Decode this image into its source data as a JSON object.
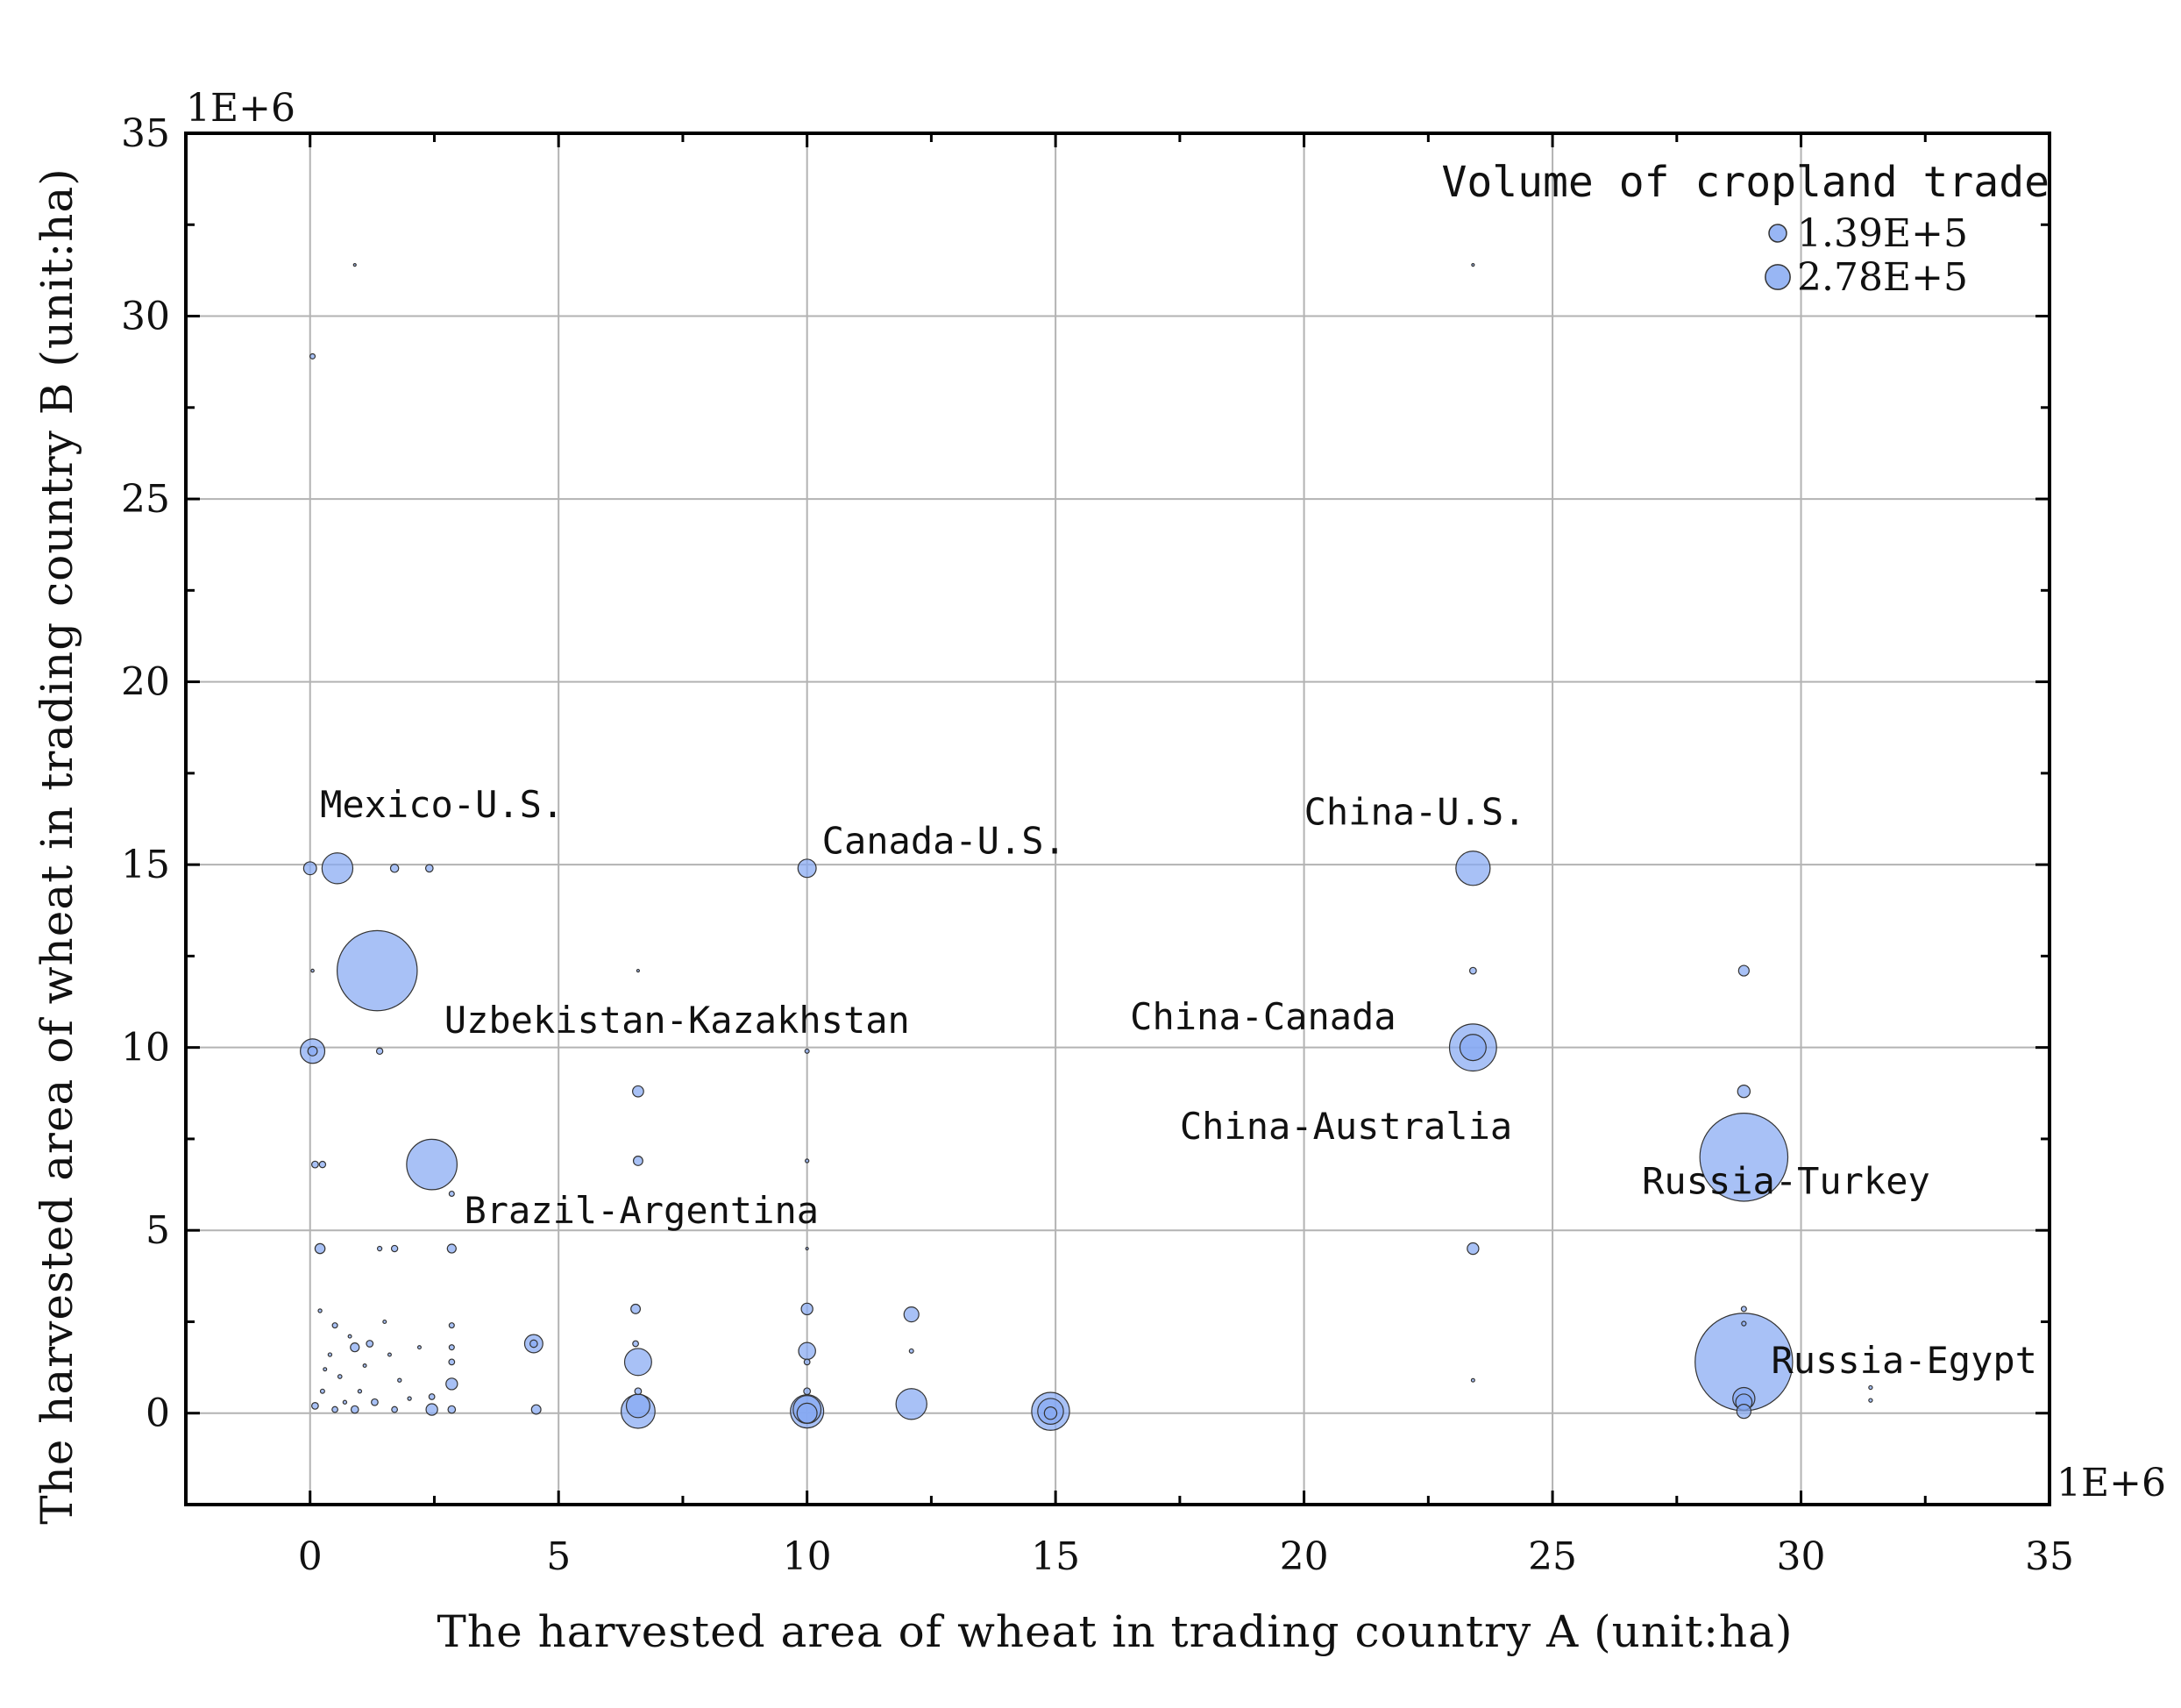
{
  "chart_data": {
    "type": "scatter",
    "title": "",
    "xlabel": "The harvested area of wheat in trading country A (unit:ha)",
    "ylabel": "The harvested area of wheat in trading country B (unit:ha)",
    "x_multiplier": "1E+6",
    "y_multiplier": "1E+6",
    "xlim": [
      -2.5,
      35
    ],
    "ylim": [
      -2.5,
      35
    ],
    "xticks": [
      0,
      5,
      10,
      15,
      20,
      25,
      30,
      35
    ],
    "yticks": [
      0,
      5,
      10,
      15,
      20,
      25,
      30,
      35
    ],
    "grid": true,
    "bubble_color": "#86a9f2",
    "bubble_stroke": "#333333",
    "legend": {
      "title": "Volume of cropland trade",
      "placement": "top-right",
      "entries": [
        {
          "label": "1.39E+5",
          "size": 139000
        },
        {
          "label": "2.78E+5",
          "size": 278000
        }
      ]
    },
    "annotations": [
      {
        "text": "Mexico-U.S.",
        "x": 0.2,
        "y": 16.3
      },
      {
        "text": "Canada-U.S.",
        "x": 10.3,
        "y": 15.3
      },
      {
        "text": "China-U.S.",
        "x": 20.0,
        "y": 16.1
      },
      {
        "text": "Uzbekistan-Kazakhstan",
        "x": 2.7,
        "y": 10.4
      },
      {
        "text": "China-Canada",
        "x": 16.5,
        "y": 10.5
      },
      {
        "text": "China-Australia",
        "x": 17.5,
        "y": 7.5
      },
      {
        "text": "Brazil-Argentina",
        "x": 3.1,
        "y": 5.2
      },
      {
        "text": "Russia-Turkey",
        "x": 26.8,
        "y": 6.0
      },
      {
        "text": "Russia-Egypt",
        "x": 29.4,
        "y": 1.1
      }
    ],
    "points": [
      {
        "x": 1.35,
        "y": 12.1,
        "size": 2900000
      },
      {
        "x": 28.85,
        "y": 7.0,
        "size": 3500000
      },
      {
        "x": 28.85,
        "y": 1.4,
        "size": 4300000
      },
      {
        "x": 2.45,
        "y": 6.8,
        "size": 1150000
      },
      {
        "x": 0.55,
        "y": 14.9,
        "size": 430000
      },
      {
        "x": 23.4,
        "y": 14.9,
        "size": 530000
      },
      {
        "x": 23.4,
        "y": 10.0,
        "size": 1000000
      },
      {
        "x": 23.4,
        "y": 10.0,
        "size": 310000
      },
      {
        "x": 10.0,
        "y": 14.9,
        "size": 150000
      },
      {
        "x": 0.05,
        "y": 9.9,
        "size": 270000
      },
      {
        "x": 0.05,
        "y": 9.9,
        "size": 40000
      },
      {
        "x": 0.0,
        "y": 14.9,
        "size": 75000
      },
      {
        "x": 0.05,
        "y": 28.9,
        "size": 12000
      },
      {
        "x": 1.7,
        "y": 14.9,
        "size": 30000
      },
      {
        "x": 2.4,
        "y": 14.9,
        "size": 25000
      },
      {
        "x": 1.4,
        "y": 9.9,
        "size": 18000
      },
      {
        "x": 0.1,
        "y": 6.8,
        "size": 20000
      },
      {
        "x": 0.25,
        "y": 6.8,
        "size": 18000
      },
      {
        "x": 2.85,
        "y": 6.0,
        "size": 12000
      },
      {
        "x": 0.2,
        "y": 4.5,
        "size": 45000
      },
      {
        "x": 1.7,
        "y": 4.5,
        "size": 18000
      },
      {
        "x": 2.85,
        "y": 4.5,
        "size": 35000
      },
      {
        "x": 1.4,
        "y": 4.5,
        "size": 9000
      },
      {
        "x": 6.6,
        "y": 8.8,
        "size": 55000
      },
      {
        "x": 6.6,
        "y": 6.9,
        "size": 40000
      },
      {
        "x": 10.0,
        "y": 9.9,
        "size": 8000
      },
      {
        "x": 10.0,
        "y": 6.9,
        "size": 6000
      },
      {
        "x": 23.4,
        "y": 12.1,
        "size": 20000
      },
      {
        "x": 23.4,
        "y": 4.5,
        "size": 60000
      },
      {
        "x": 28.85,
        "y": 12.1,
        "size": 50000
      },
      {
        "x": 28.85,
        "y": 8.8,
        "size": 70000
      },
      {
        "x": 28.85,
        "y": 2.85,
        "size": 12000
      },
      {
        "x": 28.85,
        "y": 2.45,
        "size": 9000
      },
      {
        "x": 28.85,
        "y": 0.4,
        "size": 220000
      },
      {
        "x": 28.85,
        "y": 0.3,
        "size": 120000
      },
      {
        "x": 28.85,
        "y": 0.05,
        "size": 90000
      },
      {
        "x": 31.4,
        "y": 0.7,
        "size": 6000
      },
      {
        "x": 31.4,
        "y": 0.35,
        "size": 6000
      },
      {
        "x": 23.4,
        "y": 0.9,
        "size": 5000
      },
      {
        "x": 4.5,
        "y": 1.9,
        "size": 150000
      },
      {
        "x": 4.5,
        "y": 1.9,
        "size": 25000
      },
      {
        "x": 6.6,
        "y": 1.4,
        "size": 330000
      },
      {
        "x": 6.6,
        "y": 0.05,
        "size": 520000
      },
      {
        "x": 6.6,
        "y": 0.2,
        "size": 250000
      },
      {
        "x": 6.55,
        "y": 2.85,
        "size": 40000
      },
      {
        "x": 6.55,
        "y": 1.9,
        "size": 15000
      },
      {
        "x": 10.0,
        "y": 2.85,
        "size": 60000
      },
      {
        "x": 10.0,
        "y": 1.7,
        "size": 130000
      },
      {
        "x": 10.0,
        "y": 1.4,
        "size": 15000
      },
      {
        "x": 10.0,
        "y": 0.05,
        "size": 500000
      },
      {
        "x": 10.0,
        "y": 0.1,
        "size": 350000
      },
      {
        "x": 10.0,
        "y": 0.0,
        "size": 180000
      },
      {
        "x": 12.1,
        "y": 2.7,
        "size": 100000
      },
      {
        "x": 12.1,
        "y": 1.7,
        "size": 8000
      },
      {
        "x": 12.1,
        "y": 0.25,
        "size": 430000
      },
      {
        "x": 14.9,
        "y": 0.05,
        "size": 650000
      },
      {
        "x": 14.9,
        "y": 0.05,
        "size": 300000
      },
      {
        "x": 14.9,
        "y": 0.0,
        "size": 70000
      },
      {
        "x": 2.45,
        "y": 0.1,
        "size": 60000
      },
      {
        "x": 2.45,
        "y": 0.45,
        "size": 15000
      },
      {
        "x": 2.85,
        "y": 0.8,
        "size": 60000
      },
      {
        "x": 2.85,
        "y": 1.4,
        "size": 15000
      },
      {
        "x": 2.85,
        "y": 1.8,
        "size": 12000
      },
      {
        "x": 2.85,
        "y": 2.4,
        "size": 12000
      },
      {
        "x": 2.85,
        "y": 0.1,
        "size": 25000
      },
      {
        "x": 4.55,
        "y": 0.1,
        "size": 40000
      },
      {
        "x": 0.9,
        "y": 1.8,
        "size": 35000
      },
      {
        "x": 1.2,
        "y": 1.9,
        "size": 20000
      },
      {
        "x": 0.5,
        "y": 2.4,
        "size": 12000
      },
      {
        "x": 0.9,
        "y": 0.1,
        "size": 25000
      },
      {
        "x": 1.3,
        "y": 0.3,
        "size": 20000
      },
      {
        "x": 0.5,
        "y": 0.1,
        "size": 15000
      },
      {
        "x": 0.1,
        "y": 0.2,
        "size": 20000
      },
      {
        "x": 1.7,
        "y": 0.1,
        "size": 15000
      },
      {
        "x": 0.25,
        "y": 0.6,
        "size": 8000
      },
      {
        "x": 0.6,
        "y": 1.0,
        "size": 7000
      },
      {
        "x": 1.0,
        "y": 0.6,
        "size": 6000
      },
      {
        "x": 0.4,
        "y": 1.6,
        "size": 6000
      },
      {
        "x": 1.8,
        "y": 0.9,
        "size": 6000
      },
      {
        "x": 2.2,
        "y": 1.8,
        "size": 5000
      },
      {
        "x": 0.2,
        "y": 2.8,
        "size": 6000
      },
      {
        "x": 1.5,
        "y": 2.5,
        "size": 5000
      },
      {
        "x": 0.7,
        "y": 0.3,
        "size": 6000
      },
      {
        "x": 2.0,
        "y": 0.4,
        "size": 6000
      },
      {
        "x": 1.1,
        "y": 1.3,
        "size": 5000
      },
      {
        "x": 0.3,
        "y": 1.2,
        "size": 5000
      },
      {
        "x": 1.6,
        "y": 1.6,
        "size": 5000
      },
      {
        "x": 0.8,
        "y": 2.1,
        "size": 5000
      },
      {
        "x": 0.05,
        "y": 12.1,
        "size": 4000
      },
      {
        "x": 10.0,
        "y": 4.5,
        "size": 3000
      },
      {
        "x": 6.6,
        "y": 12.1,
        "size": 3000
      },
      {
        "x": 23.4,
        "y": 31.4,
        "size": 3000
      },
      {
        "x": 0.9,
        "y": 31.4,
        "size": 3000
      },
      {
        "x": 10.0,
        "y": 0.6,
        "size": 20000
      },
      {
        "x": 6.6,
        "y": 0.6,
        "size": 20000
      }
    ]
  }
}
